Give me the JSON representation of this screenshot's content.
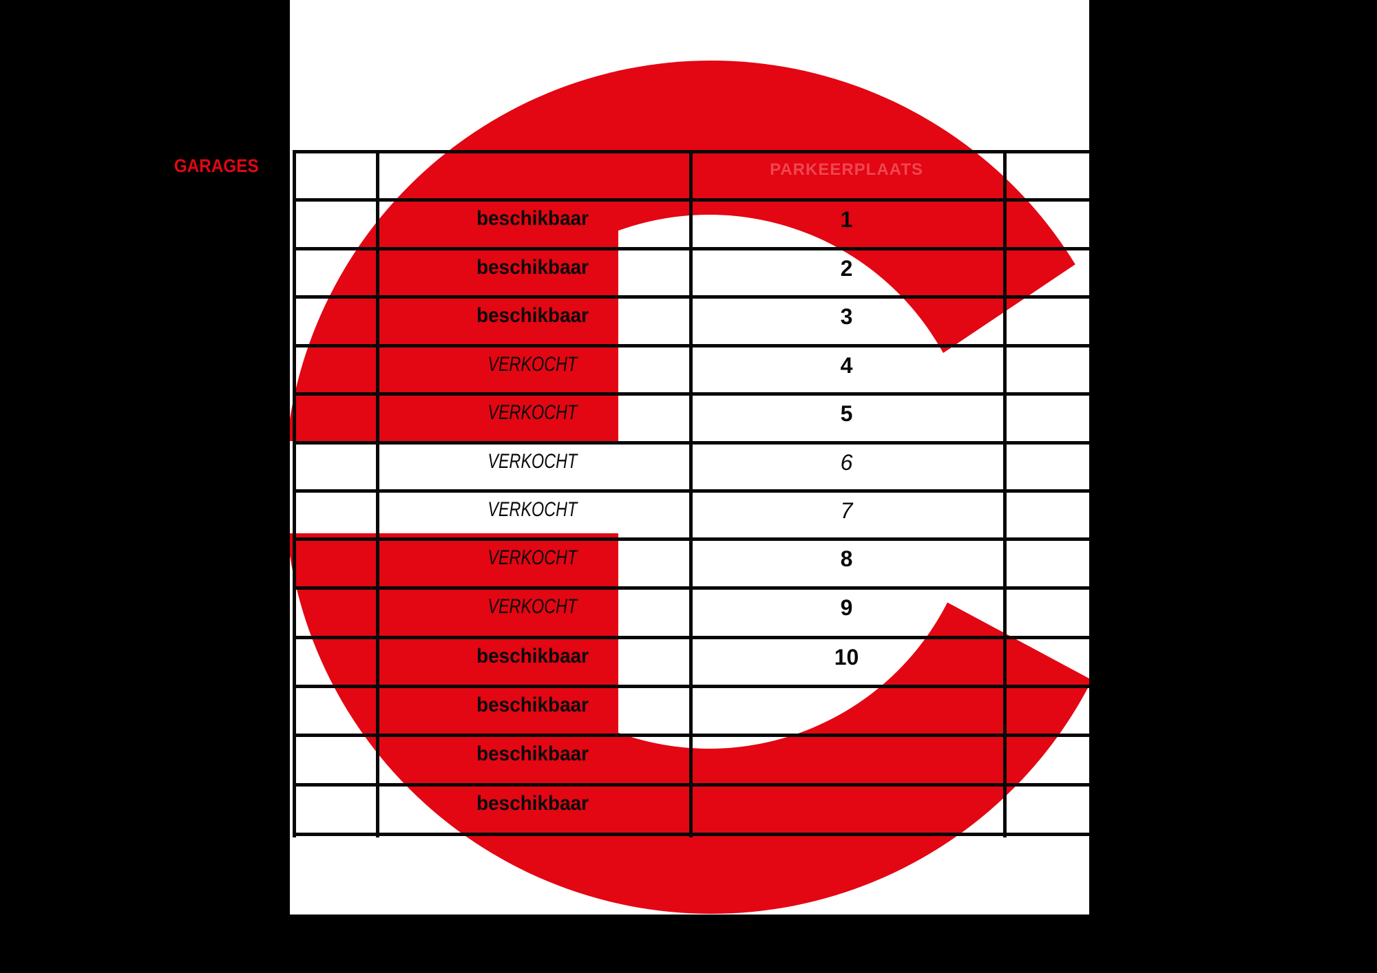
{
  "colors": {
    "brand_red": "#e30613",
    "paper_white": "#ffffff",
    "background_black": "#000000",
    "grid_line_black": "#080808",
    "text_black": "#0a0a0a",
    "header_text_light_red": "#ee4750"
  },
  "margin_label": {
    "text": "GARAGES"
  },
  "logo": {
    "name": "cordeel-c-logo",
    "description": "large red letter C"
  },
  "table": {
    "header": {
      "col_parkeerplaats": "PARKEERPLAATS"
    },
    "status_values": {
      "available": "beschikbaar",
      "sold": "VERKOCHT"
    },
    "rows": [
      {
        "status": "beschikbaar",
        "number": "1",
        "sold": false,
        "number_italic": false
      },
      {
        "status": "beschikbaar",
        "number": "2",
        "sold": false,
        "number_italic": false
      },
      {
        "status": "beschikbaar",
        "number": "3",
        "sold": false,
        "number_italic": false
      },
      {
        "status": "VERKOCHT",
        "number": "4",
        "sold": true,
        "number_italic": false
      },
      {
        "status": "VERKOCHT",
        "number": "5",
        "sold": true,
        "number_italic": false
      },
      {
        "status": "VERKOCHT",
        "number": "6",
        "sold": true,
        "number_italic": true
      },
      {
        "status": "VERKOCHT",
        "number": "7",
        "sold": true,
        "number_italic": true
      },
      {
        "status": "VERKOCHT",
        "number": "8",
        "sold": true,
        "number_italic": false
      },
      {
        "status": "VERKOCHT",
        "number": "9",
        "sold": true,
        "number_italic": false
      },
      {
        "status": "beschikbaar",
        "number": "10",
        "sold": false,
        "number_italic": false
      },
      {
        "status": "beschikbaar",
        "number": "",
        "sold": false,
        "number_italic": false
      },
      {
        "status": "beschikbaar",
        "number": "",
        "sold": false,
        "number_italic": false
      },
      {
        "status": "beschikbaar",
        "number": "",
        "sold": false,
        "number_italic": false
      }
    ]
  }
}
